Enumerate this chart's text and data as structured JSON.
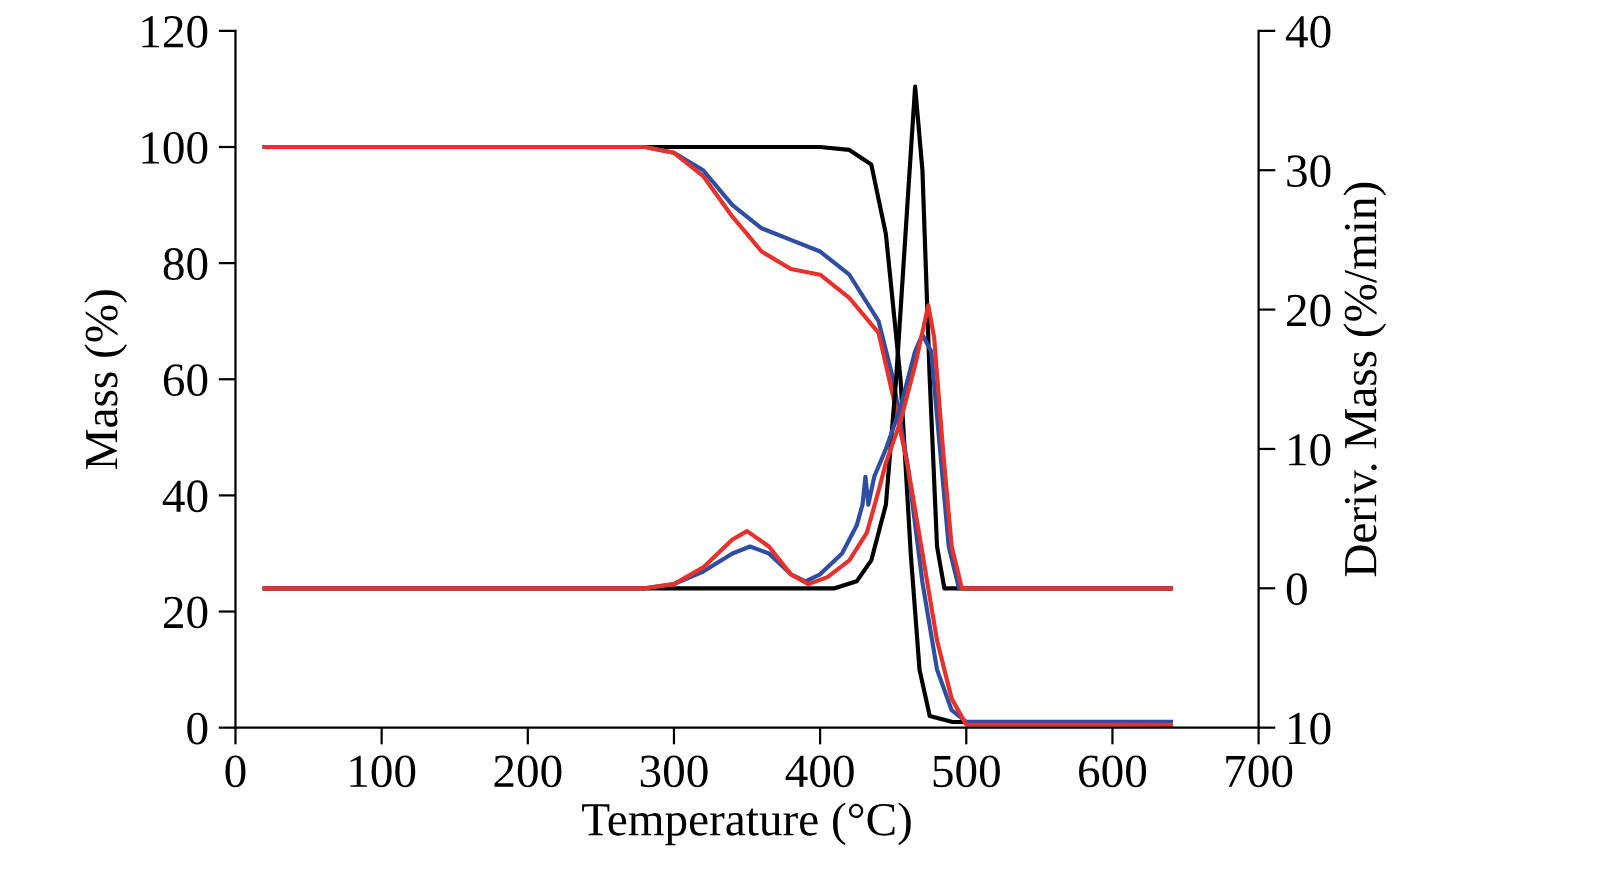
{
  "chart_data": {
    "type": "line",
    "xlabel": "Temperature (°C)",
    "ylabel": "Mass (%)",
    "y2label": "Deriv. Mass (%/min)",
    "xlim": [
      0,
      700
    ],
    "xticks": [
      0,
      100,
      200,
      300,
      400,
      500,
      600,
      700
    ],
    "ylim": [
      0,
      120
    ],
    "yticks": [
      0,
      20,
      40,
      60,
      80,
      100,
      120
    ],
    "y2lim": [
      -10,
      40
    ],
    "y2ticks": [
      {
        "value": -10,
        "label": "10"
      },
      0,
      10,
      20,
      30,
      40
    ],
    "grid": false,
    "legend": false,
    "marker": "none",
    "line_style": "solid",
    "series": [
      {
        "color": "#000000",
        "x": [
          20,
          400,
          420,
          435,
          445,
          455,
          462,
          468,
          475,
          490,
          640
        ],
        "values": [
          100,
          100,
          99.5,
          97,
          85,
          60,
          30,
          10,
          2,
          1,
          0.5
        ]
      },
      {
        "color": "#2e4ea3",
        "x": [
          20,
          280,
          300,
          320,
          340,
          360,
          380,
          400,
          420,
          440,
          450,
          460,
          470,
          480,
          490,
          500,
          640
        ],
        "values": [
          100,
          100,
          99,
          96,
          90,
          86,
          84,
          82,
          78,
          70,
          60,
          45,
          25,
          10,
          3,
          1,
          1
        ]
      },
      {
        "color": "#e8312a",
        "x": [
          20,
          280,
          300,
          320,
          340,
          360,
          380,
          400,
          420,
          440,
          450,
          460,
          470,
          480,
          490,
          500,
          640
        ],
        "values": [
          100,
          100,
          99,
          95,
          88,
          82,
          79,
          78,
          74,
          68,
          57,
          45,
          30,
          15,
          5,
          0.5,
          0.5
        ]
      },
      {
        "axis": "y2",
        "color": "#000000",
        "x": [
          20,
          410,
          425,
          435,
          445,
          452,
          460,
          465,
          470,
          475,
          480,
          485,
          640
        ],
        "values": [
          0,
          0,
          0.5,
          2,
          6,
          15,
          28,
          36,
          30,
          15,
          3,
          0,
          0
        ]
      },
      {
        "axis": "y2",
        "color": "#2e4ea3",
        "x": [
          20,
          280,
          300,
          320,
          340,
          352,
          365,
          380,
          390,
          400,
          415,
          425,
          429,
          431,
          433,
          437,
          445,
          455,
          465,
          470,
          476,
          482,
          488,
          495,
          640
        ],
        "values": [
          0,
          0,
          0.3,
          1.2,
          2.5,
          3,
          2.5,
          1,
          0.5,
          1,
          2.5,
          4.5,
          6,
          8,
          6,
          8,
          10,
          13,
          17,
          18.2,
          17,
          10,
          3,
          0,
          0
        ]
      },
      {
        "axis": "y2",
        "color": "#e8312a",
        "x": [
          20,
          280,
          300,
          320,
          340,
          350,
          365,
          380,
          392,
          405,
          420,
          432,
          440,
          445,
          455,
          465,
          474,
          478,
          484,
          490,
          497,
          640
        ],
        "values": [
          0,
          0,
          0.3,
          1.5,
          3.5,
          4.1,
          3,
          1,
          0.3,
          0.8,
          2,
          4,
          7,
          9,
          12,
          16,
          20.3,
          18,
          10,
          3,
          0,
          0
        ]
      }
    ]
  }
}
